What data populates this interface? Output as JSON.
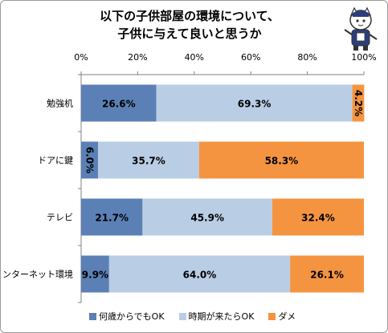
{
  "chart_data": {
    "type": "bar",
    "orientation": "horizontal",
    "stacked": "percent",
    "title": [
      "以下の子供部屋の環境について、",
      "子供に与えて良いと思うか"
    ],
    "categories": [
      "勉強机",
      "ドアに鍵",
      "テレビ",
      "インターネット環境"
    ],
    "series": [
      {
        "name": "何歳からでもOK",
        "values": [
          26.6,
          6.0,
          21.7,
          9.9
        ],
        "labels": [
          "26.6%",
          "6.0%",
          "21.7%",
          "9.9%"
        ]
      },
      {
        "name": "時期が来たらOK",
        "values": [
          69.3,
          35.7,
          45.9,
          64.0
        ],
        "labels": [
          "69.3%",
          "35.7%",
          "45.9%",
          "64.0%"
        ]
      },
      {
        "name": "ダメ",
        "values": [
          4.2,
          58.3,
          32.4,
          26.1
        ],
        "labels": [
          "4.2%",
          "58.3%",
          "32.4%",
          "26.1%"
        ]
      }
    ],
    "xlim": [
      0,
      100
    ],
    "xticks": [
      "0%",
      "20%",
      "40%",
      "60%",
      "80%",
      "100%"
    ],
    "grid": false,
    "legend": "bottom",
    "colors": [
      "#5b80b6",
      "#b9cde5",
      "#f59440"
    ]
  }
}
